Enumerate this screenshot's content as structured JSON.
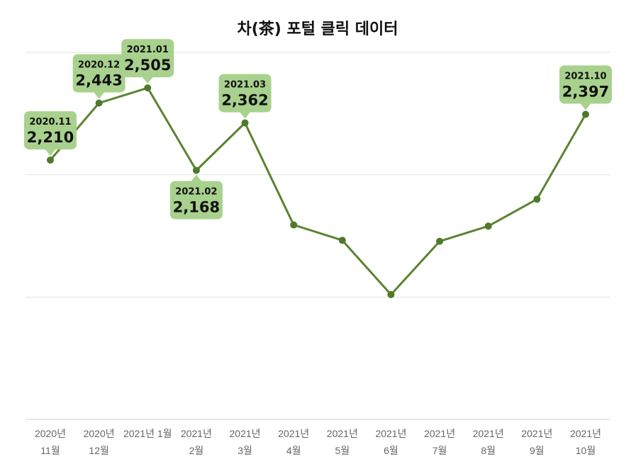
{
  "chart_data": {
    "type": "line",
    "title": "차(茶) 포털 클릭 데이터",
    "xlabel": "",
    "ylabel": "",
    "categories": [
      [
        "2020년",
        "11월"
      ],
      [
        "2020년",
        "12월"
      ],
      [
        "2021년 1월",
        ""
      ],
      [
        "2021년",
        "2월"
      ],
      [
        "2021년",
        "3월"
      ],
      [
        "2021년",
        "4월"
      ],
      [
        "2021년",
        "5월"
      ],
      [
        "2021년",
        "6월"
      ],
      [
        "2021년",
        "7월"
      ],
      [
        "2021년",
        "8월"
      ],
      [
        "2021년",
        "9월"
      ],
      [
        "2021년",
        "10월"
      ]
    ],
    "values": [
      2210,
      2443,
      2505,
      2168,
      2362,
      1945,
      1882,
      1660,
      1878,
      1940,
      2050,
      2397
    ],
    "ylim": [
      1150,
      2650
    ],
    "gridlines": [
      1150,
      1650,
      2150,
      2650
    ],
    "grid": true,
    "legend": "none",
    "line_color": "#5b8331",
    "callout_color": "#a9d18e",
    "callouts": [
      {
        "index": 0,
        "date": "2020.11",
        "value": "2,210",
        "side": "above"
      },
      {
        "index": 1,
        "date": "2020.12",
        "value": "2,443",
        "side": "above"
      },
      {
        "index": 2,
        "date": "2021.01",
        "value": "2,505",
        "side": "above"
      },
      {
        "index": 3,
        "date": "2021.02",
        "value": "2,168",
        "side": "below"
      },
      {
        "index": 4,
        "date": "2021.03",
        "value": "2,362",
        "side": "above"
      },
      {
        "index": 11,
        "date": "2021.10",
        "value": "2,397",
        "side": "above"
      }
    ]
  }
}
